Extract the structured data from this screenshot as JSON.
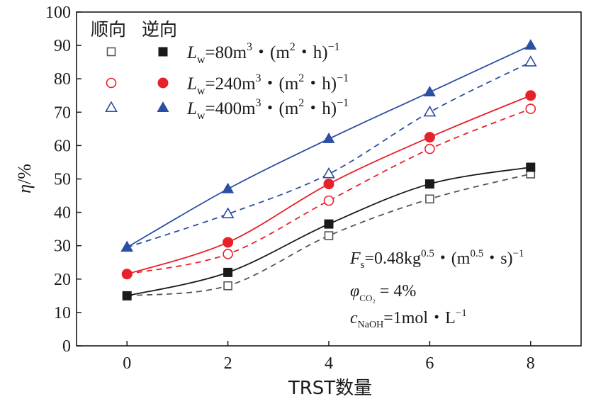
{
  "chart_data": {
    "type": "line",
    "xlabel": "TRST数量",
    "ylabel": "η/%",
    "xlim": [
      -1,
      9
    ],
    "ylim": [
      0,
      100
    ],
    "x_ticks": [
      0,
      2,
      4,
      6,
      8
    ],
    "y_ticks": [
      0,
      10,
      20,
      30,
      40,
      50,
      60,
      70,
      80,
      90,
      100
    ],
    "legend": {
      "position": "top-left",
      "header_cocurrent": "顺向",
      "header_countercurrent": "逆向"
    },
    "series": [
      {
        "name": "80 cocurrent",
        "flow": "顺向",
        "color": "#555555",
        "marker": "square-open",
        "line": "dashed",
        "x": [
          0,
          2,
          4,
          6,
          8
        ],
        "values": [
          15,
          18,
          33,
          44,
          51.5
        ]
      },
      {
        "name": "80 countercurrent",
        "flow": "逆向",
        "color": "#1a1a1a",
        "marker": "square-filled",
        "line": "solid",
        "x": [
          0,
          2,
          4,
          6,
          8
        ],
        "values": [
          15,
          22,
          36.5,
          48.5,
          53.5
        ]
      },
      {
        "name": "240 cocurrent",
        "flow": "顺向",
        "color": "#e8202a",
        "marker": "circle-open",
        "line": "dashed",
        "x": [
          0,
          2,
          4,
          6,
          8
        ],
        "values": [
          21.5,
          27.5,
          43.5,
          59,
          71
        ]
      },
      {
        "name": "240 countercurrent",
        "flow": "逆向",
        "color": "#e8202a",
        "marker": "circle-filled",
        "line": "solid",
        "x": [
          0,
          2,
          4,
          6,
          8
        ],
        "values": [
          21.5,
          31,
          48.5,
          62.5,
          75
        ]
      },
      {
        "name": "400 cocurrent",
        "flow": "顺向",
        "color": "#2c4ea3",
        "marker": "triangle-open",
        "line": "dashed",
        "x": [
          0,
          2,
          4,
          6,
          8
        ],
        "values": [
          29.5,
          39.5,
          51.5,
          70,
          85
        ]
      },
      {
        "name": "400 countercurrent",
        "flow": "逆向",
        "color": "#2c4ea3",
        "marker": "triangle-filled",
        "line": "solid",
        "x": [
          0,
          2,
          4,
          6,
          8
        ],
        "values": [
          29.5,
          47,
          62,
          76,
          90
        ]
      }
    ],
    "legend_entries": [
      {
        "pre": "L",
        "sub": "w",
        "mid": "=80m",
        "sup1": "3",
        "mid2": "・(m",
        "sup2": "2",
        "end": "・h)",
        "sup3": "−1"
      },
      {
        "pre": "L",
        "sub": "w",
        "mid": "=240m",
        "sup1": "3",
        "mid2": "・(m",
        "sup2": "2",
        "end": "・h)",
        "sup3": "−1"
      },
      {
        "pre": "L",
        "sub": "w",
        "mid": "=400m",
        "sup1": "3",
        "mid2": "・(m",
        "sup2": "2",
        "end": "・h)",
        "sup3": "−1"
      }
    ],
    "annotations": {
      "line1": {
        "pre": "F",
        "sub": "s",
        "mid": "=0.48kg",
        "sup1": "0.5",
        "mid2": "・(m",
        "sup2": "0.5",
        "end": "・s)",
        "sup3": "−1"
      },
      "line2": {
        "pre": "φ",
        "sub": "CO₂",
        "end": " = 4%"
      },
      "line3": {
        "pre": "c",
        "sub": "NaOH",
        "end": "=1mol・L",
        "sup": "−1"
      }
    }
  }
}
